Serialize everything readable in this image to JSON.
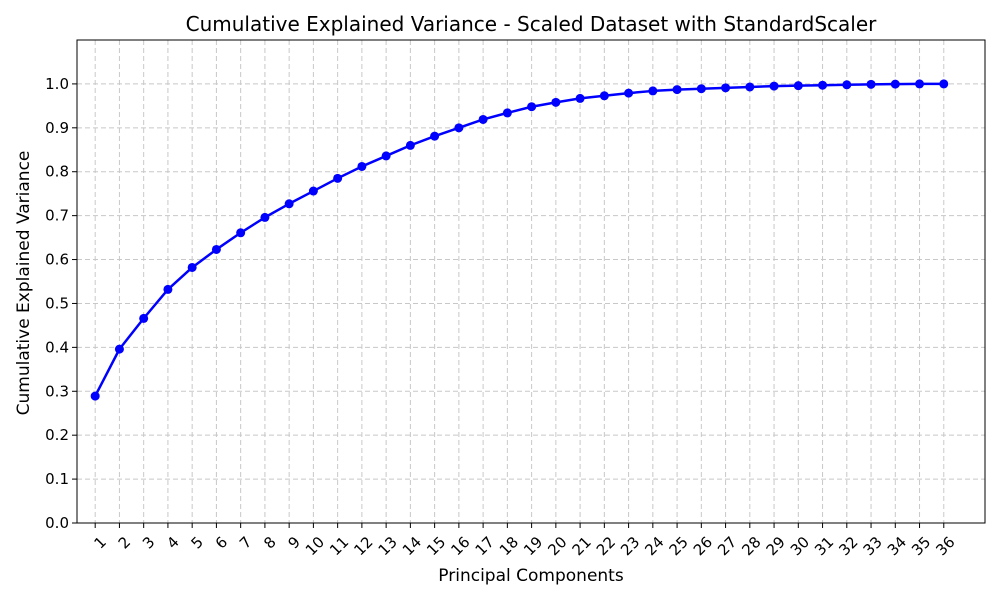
{
  "chart_data": {
    "type": "line",
    "title": "Cumulative Explained Variance - Scaled Dataset with StandardScaler",
    "xlabel": "Principal Components",
    "ylabel": "Cumulative Explained Variance",
    "x": [
      1,
      2,
      3,
      4,
      5,
      6,
      7,
      8,
      9,
      10,
      11,
      12,
      13,
      14,
      15,
      16,
      17,
      18,
      19,
      20,
      21,
      22,
      23,
      24,
      25,
      26,
      27,
      28,
      29,
      30,
      31,
      32,
      33,
      34,
      35,
      36
    ],
    "x_tick_labels": [
      "1",
      "2",
      "3",
      "4",
      "5",
      "6",
      "7",
      "8",
      "9",
      "10",
      "11",
      "12",
      "13",
      "14",
      "15",
      "16",
      "17",
      "18",
      "19",
      "20",
      "21",
      "22",
      "23",
      "24",
      "25",
      "26",
      "27",
      "28",
      "29",
      "30",
      "31",
      "32",
      "33",
      "34",
      "35",
      "36"
    ],
    "xlim": [
      0.25,
      37.7
    ],
    "ylim": [
      0.0,
      1.1
    ],
    "y_ticks": [
      0.0,
      0.1,
      0.2,
      0.3,
      0.4,
      0.5,
      0.6,
      0.7,
      0.8,
      0.9,
      1.0
    ],
    "y_tick_labels": [
      "0.0",
      "0.1",
      "0.2",
      "0.3",
      "0.4",
      "0.5",
      "0.6",
      "0.7",
      "0.8",
      "0.9",
      "1.0"
    ],
    "series": [
      {
        "values": [
          0.289,
          0.396,
          0.466,
          0.532,
          0.582,
          0.623,
          0.661,
          0.696,
          0.727,
          0.756,
          0.785,
          0.812,
          0.836,
          0.86,
          0.881,
          0.9,
          0.919,
          0.934,
          0.948,
          0.958,
          0.967,
          0.973,
          0.979,
          0.984,
          0.987,
          0.989,
          0.991,
          0.993,
          0.995,
          0.996,
          0.997,
          0.998,
          0.999,
          0.9995,
          1.0,
          1.0
        ],
        "color": "#0000ff"
      }
    ],
    "grid": true,
    "x_tick_rotation": 45
  }
}
